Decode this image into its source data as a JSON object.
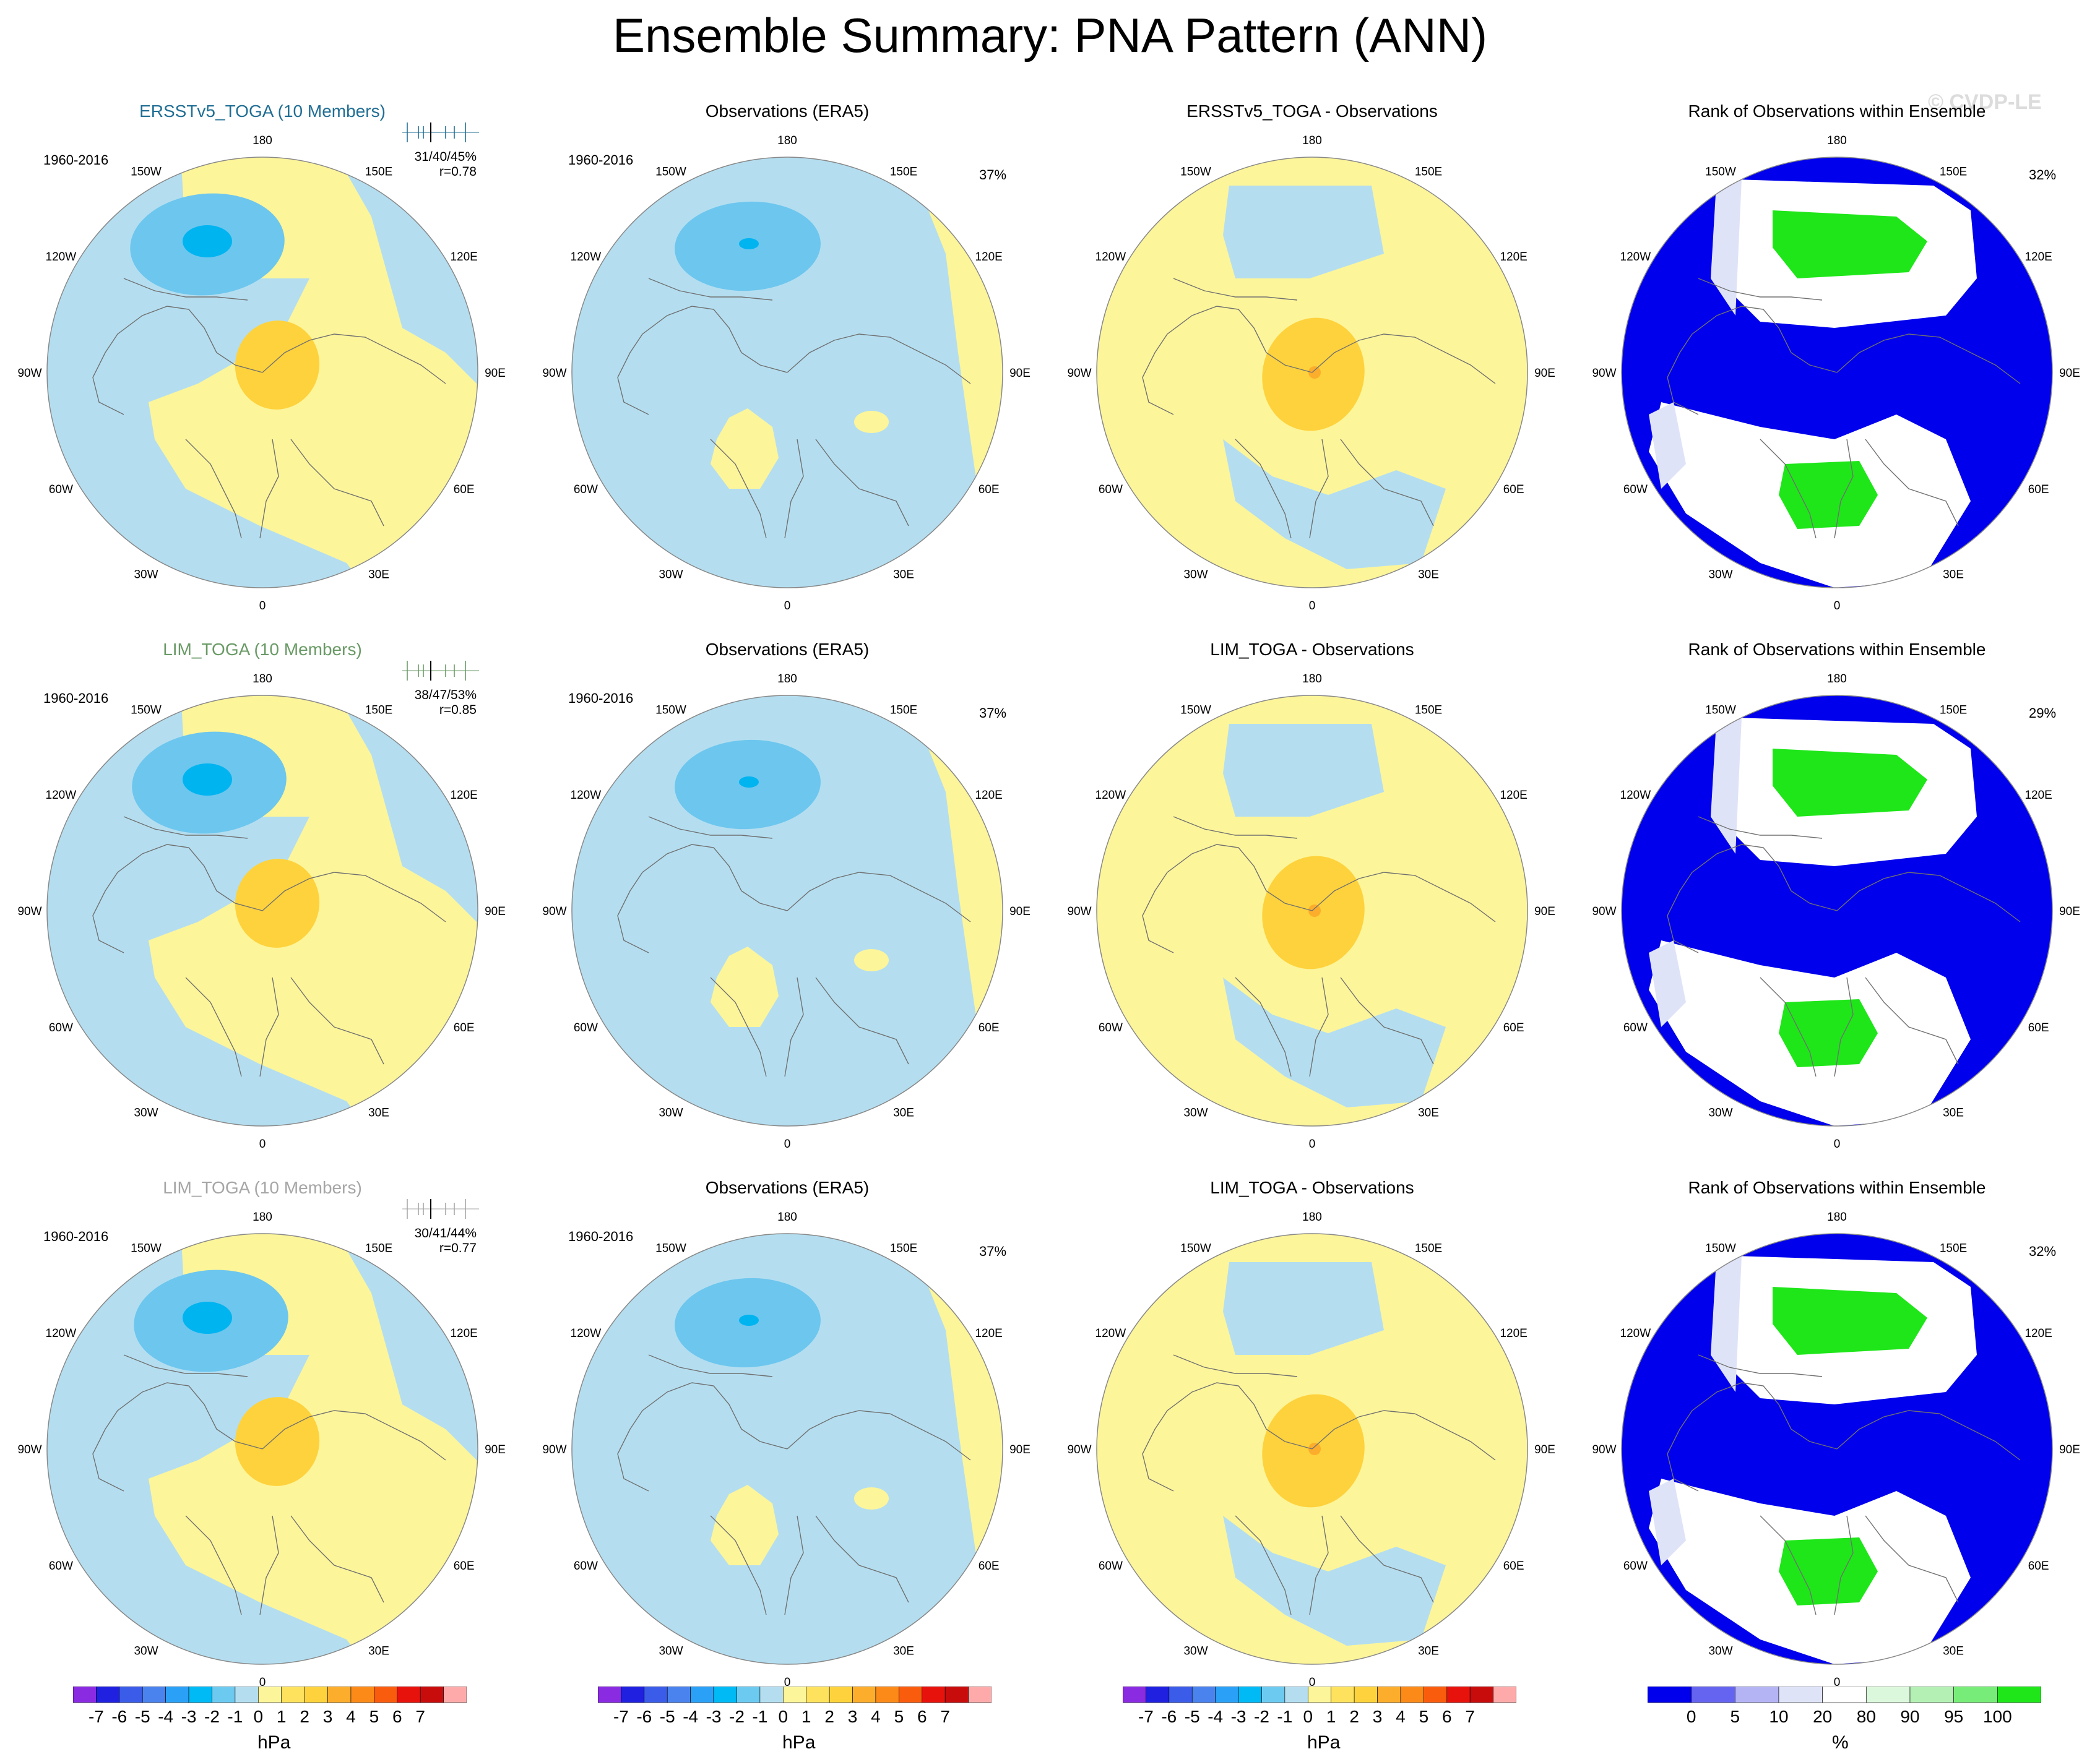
{
  "title": "Ensemble Summary: PNA Pattern (ANN)",
  "watermark": "© CVDP-LE",
  "lon_labels": [
    "180",
    "150E",
    "120E",
    "90E",
    "60E",
    "30E",
    "0",
    "30W",
    "60W",
    "90W",
    "120W",
    "150W"
  ],
  "colors": {
    "lightblue": "#b4def0",
    "midblue": "#6dc6ee",
    "cyan": "#00b4f0",
    "yellow": "#fdf59a",
    "gold": "#fed23c",
    "orange": "#fcad2c",
    "rank_blue": "#0000ec",
    "rank_white": "#ffffff",
    "rank_lavender": "#dfe3f8",
    "rank_green": "#1ee619",
    "rank_lightgreen": "#dcf8dc",
    "ersst": "#206e94",
    "lim_green": "#6a9a66",
    "lim_gray": "#a6a6a6"
  },
  "rows": [
    {
      "model": {
        "title": "ERSSTv5_TOGA (10 Members)",
        "title_color": "#206e94",
        "years": "1960-2016",
        "stats": "31/40/45%",
        "r": "r=0.78"
      },
      "obs": {
        "title": "Observations (ERA5)",
        "years": "1960-2016",
        "pct": "37%"
      },
      "diff": {
        "title": "ERSSTv5_TOGA - Observations"
      },
      "rank": {
        "title": "Rank of Observations within Ensemble",
        "pct": "32%"
      }
    },
    {
      "model": {
        "title": "LIM_TOGA (10 Members)",
        "title_color": "#6a9a66",
        "years": "1960-2016",
        "stats": "38/47/53%",
        "r": "r=0.85"
      },
      "obs": {
        "title": "Observations (ERA5)",
        "years": "1960-2016",
        "pct": "37%"
      },
      "diff": {
        "title": "LIM_TOGA - Observations"
      },
      "rank": {
        "title": "Rank of Observations within Ensemble",
        "pct": "29%"
      }
    },
    {
      "model": {
        "title": "LIM_TOGA (10 Members)",
        "title_color": "#a6a6a6",
        "years": "1960-2016",
        "stats": "30/41/44%",
        "r": "r=0.77"
      },
      "obs": {
        "title": "Observations (ERA5)",
        "years": "1960-2016",
        "pct": "37%"
      },
      "diff": {
        "title": "LIM_TOGA - Observations"
      },
      "rank": {
        "title": "Rank of Observations within Ensemble",
        "pct": "32%"
      }
    }
  ],
  "colorbars": {
    "hpa": {
      "unit": "hPa",
      "labels": [
        "-7",
        "-6",
        "-5",
        "-4",
        "-3",
        "-2",
        "-1",
        "0",
        "1",
        "2",
        "3",
        "4",
        "5",
        "6",
        "7"
      ],
      "colors": [
        "#8a2be2",
        "#2020e0",
        "#3a5ce8",
        "#4a82ee",
        "#2aa0f6",
        "#00baf6",
        "#6ccaf0",
        "#b4def0",
        "#fdf59a",
        "#fee25e",
        "#fed23c",
        "#fcad2c",
        "#fc8a18",
        "#fa5c0e",
        "#e8120c",
        "#c80c0c",
        "#ffaaaa"
      ]
    },
    "percent": {
      "unit": "%",
      "labels": [
        "0",
        "5",
        "10",
        "20",
        "80",
        "90",
        "95",
        "100"
      ],
      "colors": [
        "#0000ec",
        "#6464f0",
        "#b4b4f4",
        "#dfe3f8",
        "#ffffff",
        "#dcf8dc",
        "#b4f0b4",
        "#78ec78",
        "#1ee619"
      ]
    }
  }
}
